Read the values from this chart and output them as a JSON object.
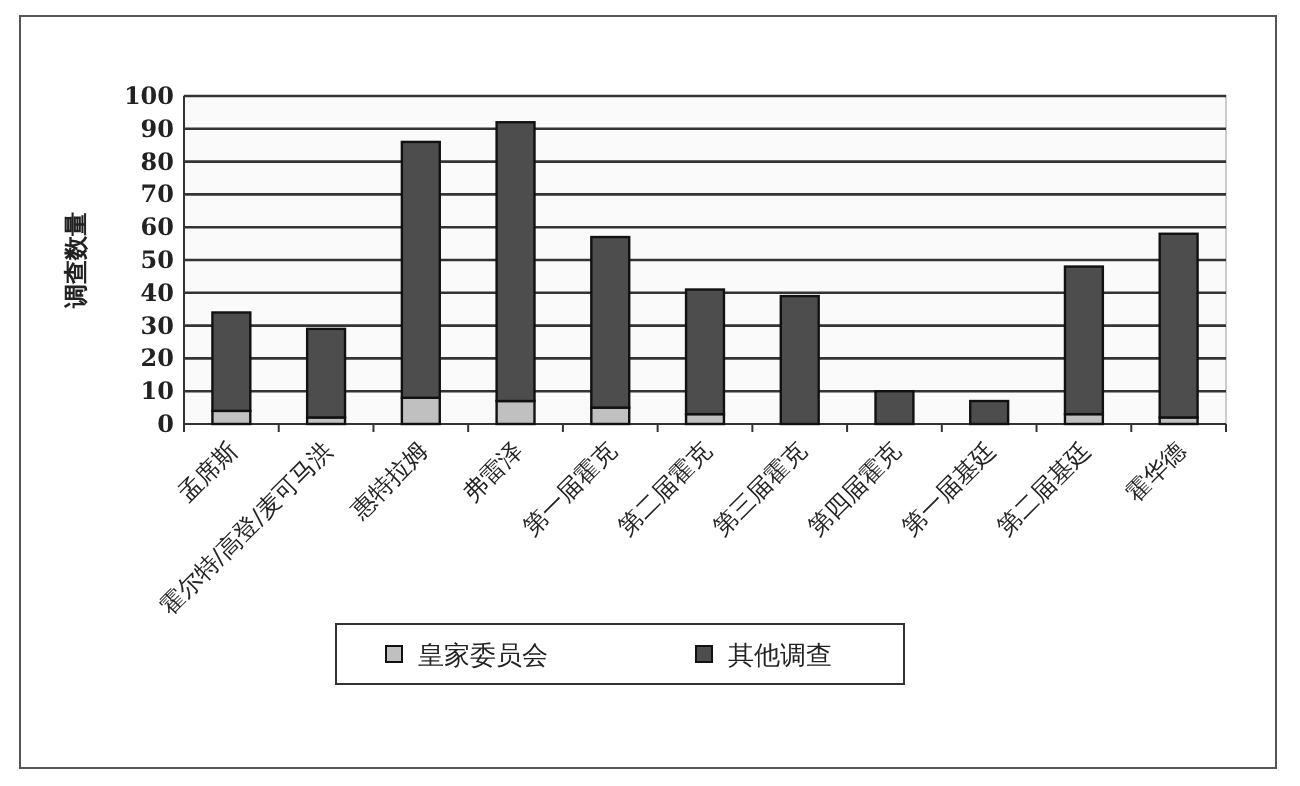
{
  "chart_data": {
    "type": "bar",
    "stacked": true,
    "ylabel": "调查数量",
    "categories": [
      "孟席斯",
      "霍尔特/高登/麦可马洪",
      "惠特拉姆",
      "弗雷泽",
      "第一届霍克",
      "第二届霍克",
      "第三届霍克",
      "第四届霍克",
      "第一届基廷",
      "第二届基廷",
      "霍华德"
    ],
    "series": [
      {
        "name": "皇家委员会",
        "color": "#c0c0c0",
        "values": [
          4,
          2,
          8,
          7,
          5,
          3,
          0,
          0,
          0,
          3,
          2
        ]
      },
      {
        "name": "其他调查",
        "color": "#4d4d4d",
        "values": [
          30,
          27,
          78,
          85,
          52,
          38,
          39,
          10,
          7,
          45,
          56
        ]
      }
    ],
    "ylim": [
      0,
      100
    ],
    "yticks": [
      0,
      10,
      20,
      30,
      40,
      50,
      60,
      70,
      80,
      90,
      100
    ],
    "grid": "y",
    "legend": "bottom"
  }
}
